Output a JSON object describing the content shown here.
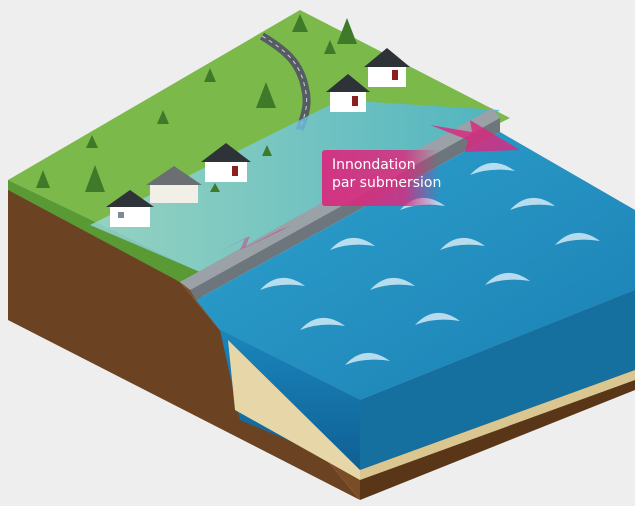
{
  "annotation": {
    "line1": "Innondation",
    "line2": "par submersion"
  },
  "colors": {
    "background": "#eeeeef",
    "grass": "#7ab94a",
    "soil": "#6b4322",
    "sea": "#1c8fc0",
    "sand": "#e6d6a8",
    "flood": "#5dbfe0",
    "arrow": "#d62d80"
  },
  "icons": [
    "house-icon",
    "tree-icon",
    "arrow-icon"
  ]
}
